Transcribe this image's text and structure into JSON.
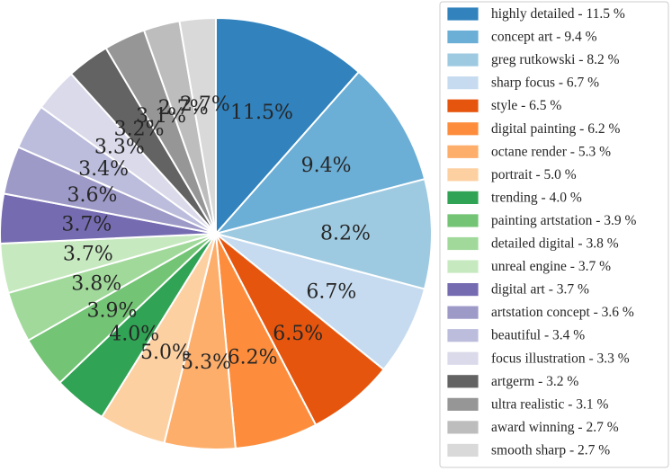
{
  "chart_data": {
    "type": "pie",
    "title": "",
    "legend_position": "right",
    "start_angle_deg": 90,
    "direction": "clockwise",
    "categories": [
      "highly detailed",
      "concept art",
      "greg rutkowski",
      "sharp focus",
      "style",
      "digital painting",
      "octane render",
      "portrait",
      "trending",
      "painting artstation",
      "detailed digital",
      "unreal engine",
      "digital art",
      "artstation concept",
      "beautiful",
      "focus illustration",
      "artgerm",
      "ultra realistic",
      "award winning",
      "smooth sharp"
    ],
    "values": [
      11.5,
      9.4,
      8.2,
      6.7,
      6.5,
      6.2,
      5.3,
      5.0,
      4.0,
      3.9,
      3.8,
      3.7,
      3.7,
      3.6,
      3.4,
      3.3,
      3.2,
      3.1,
      2.7,
      2.7
    ],
    "slice_labels": [
      "11.5%",
      "9.4%",
      "8.2%",
      "6.7%",
      "6.5%",
      "6.2%",
      "5.3%",
      "5.0%",
      "4.0%",
      "3.9%",
      "3.8%",
      "3.7%",
      "3.7%",
      "3.6%",
      "3.4%",
      "3.3%",
      "3.2%",
      "3.1%",
      "2.7%",
      "2.7%"
    ],
    "legend_labels": [
      "highly detailed - 11.5 %",
      "concept art - 9.4 %",
      "greg rutkowski - 8.2 %",
      "sharp focus - 6.7 %",
      "style - 6.5 %",
      "digital painting - 6.2 %",
      "octane render - 5.3 %",
      "portrait - 5.0 %",
      "trending - 4.0 %",
      "painting artstation - 3.9 %",
      "detailed digital - 3.8 %",
      "unreal engine - 3.7 %",
      "digital art - 3.7 %",
      "artstation concept - 3.6 %",
      "beautiful - 3.4 %",
      "focus illustration - 3.3 %",
      "artgerm - 3.2 %",
      "ultra realistic - 3.1 %",
      "award winning - 2.7 %",
      "smooth sharp - 2.7 %"
    ],
    "colors": [
      "#3182bd",
      "#6baed6",
      "#9ecae1",
      "#c6dbef",
      "#e6550d",
      "#fd8d3c",
      "#fdae6b",
      "#fdd0a2",
      "#31a354",
      "#74c476",
      "#a1d99b",
      "#c7e9c0",
      "#756bb1",
      "#9e9ac8",
      "#bcbddc",
      "#dadaeb",
      "#636363",
      "#969696",
      "#bdbdbd",
      "#d9d9d9"
    ]
  }
}
